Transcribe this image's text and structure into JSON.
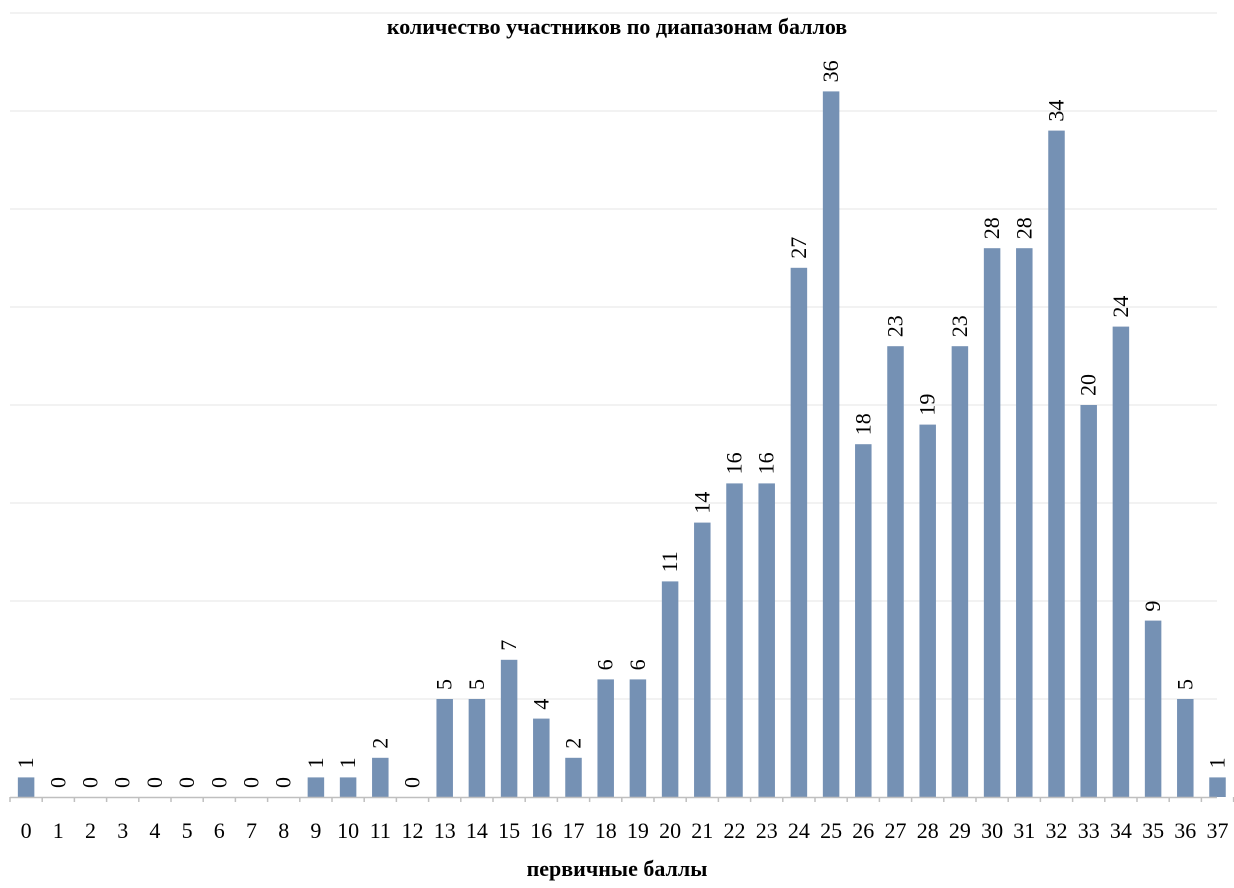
{
  "chart_data": {
    "type": "bar",
    "title": "количество участников по диапазонам баллов",
    "xlabel": "первичные баллы",
    "ylabel": "",
    "categories": [
      "0",
      "1",
      "2",
      "3",
      "4",
      "5",
      "6",
      "7",
      "8",
      "9",
      "10",
      "11",
      "12",
      "13",
      "14",
      "15",
      "16",
      "17",
      "18",
      "19",
      "20",
      "21",
      "22",
      "23",
      "24",
      "25",
      "26",
      "27",
      "28",
      "29",
      "30",
      "31",
      "32",
      "33",
      "34",
      "35",
      "36",
      "37"
    ],
    "values": [
      1,
      0,
      0,
      0,
      0,
      0,
      0,
      0,
      0,
      1,
      1,
      2,
      0,
      5,
      5,
      7,
      4,
      2,
      6,
      6,
      11,
      14,
      16,
      16,
      27,
      36,
      18,
      23,
      19,
      23,
      28,
      28,
      34,
      20,
      24,
      9,
      5,
      1
    ],
    "ylim": [
      0,
      40
    ],
    "grid": true,
    "legend": "none",
    "bar_color": "#7591B4",
    "grid_color": "#E6E6E6",
    "axis_color": "#BFBFBF"
  }
}
